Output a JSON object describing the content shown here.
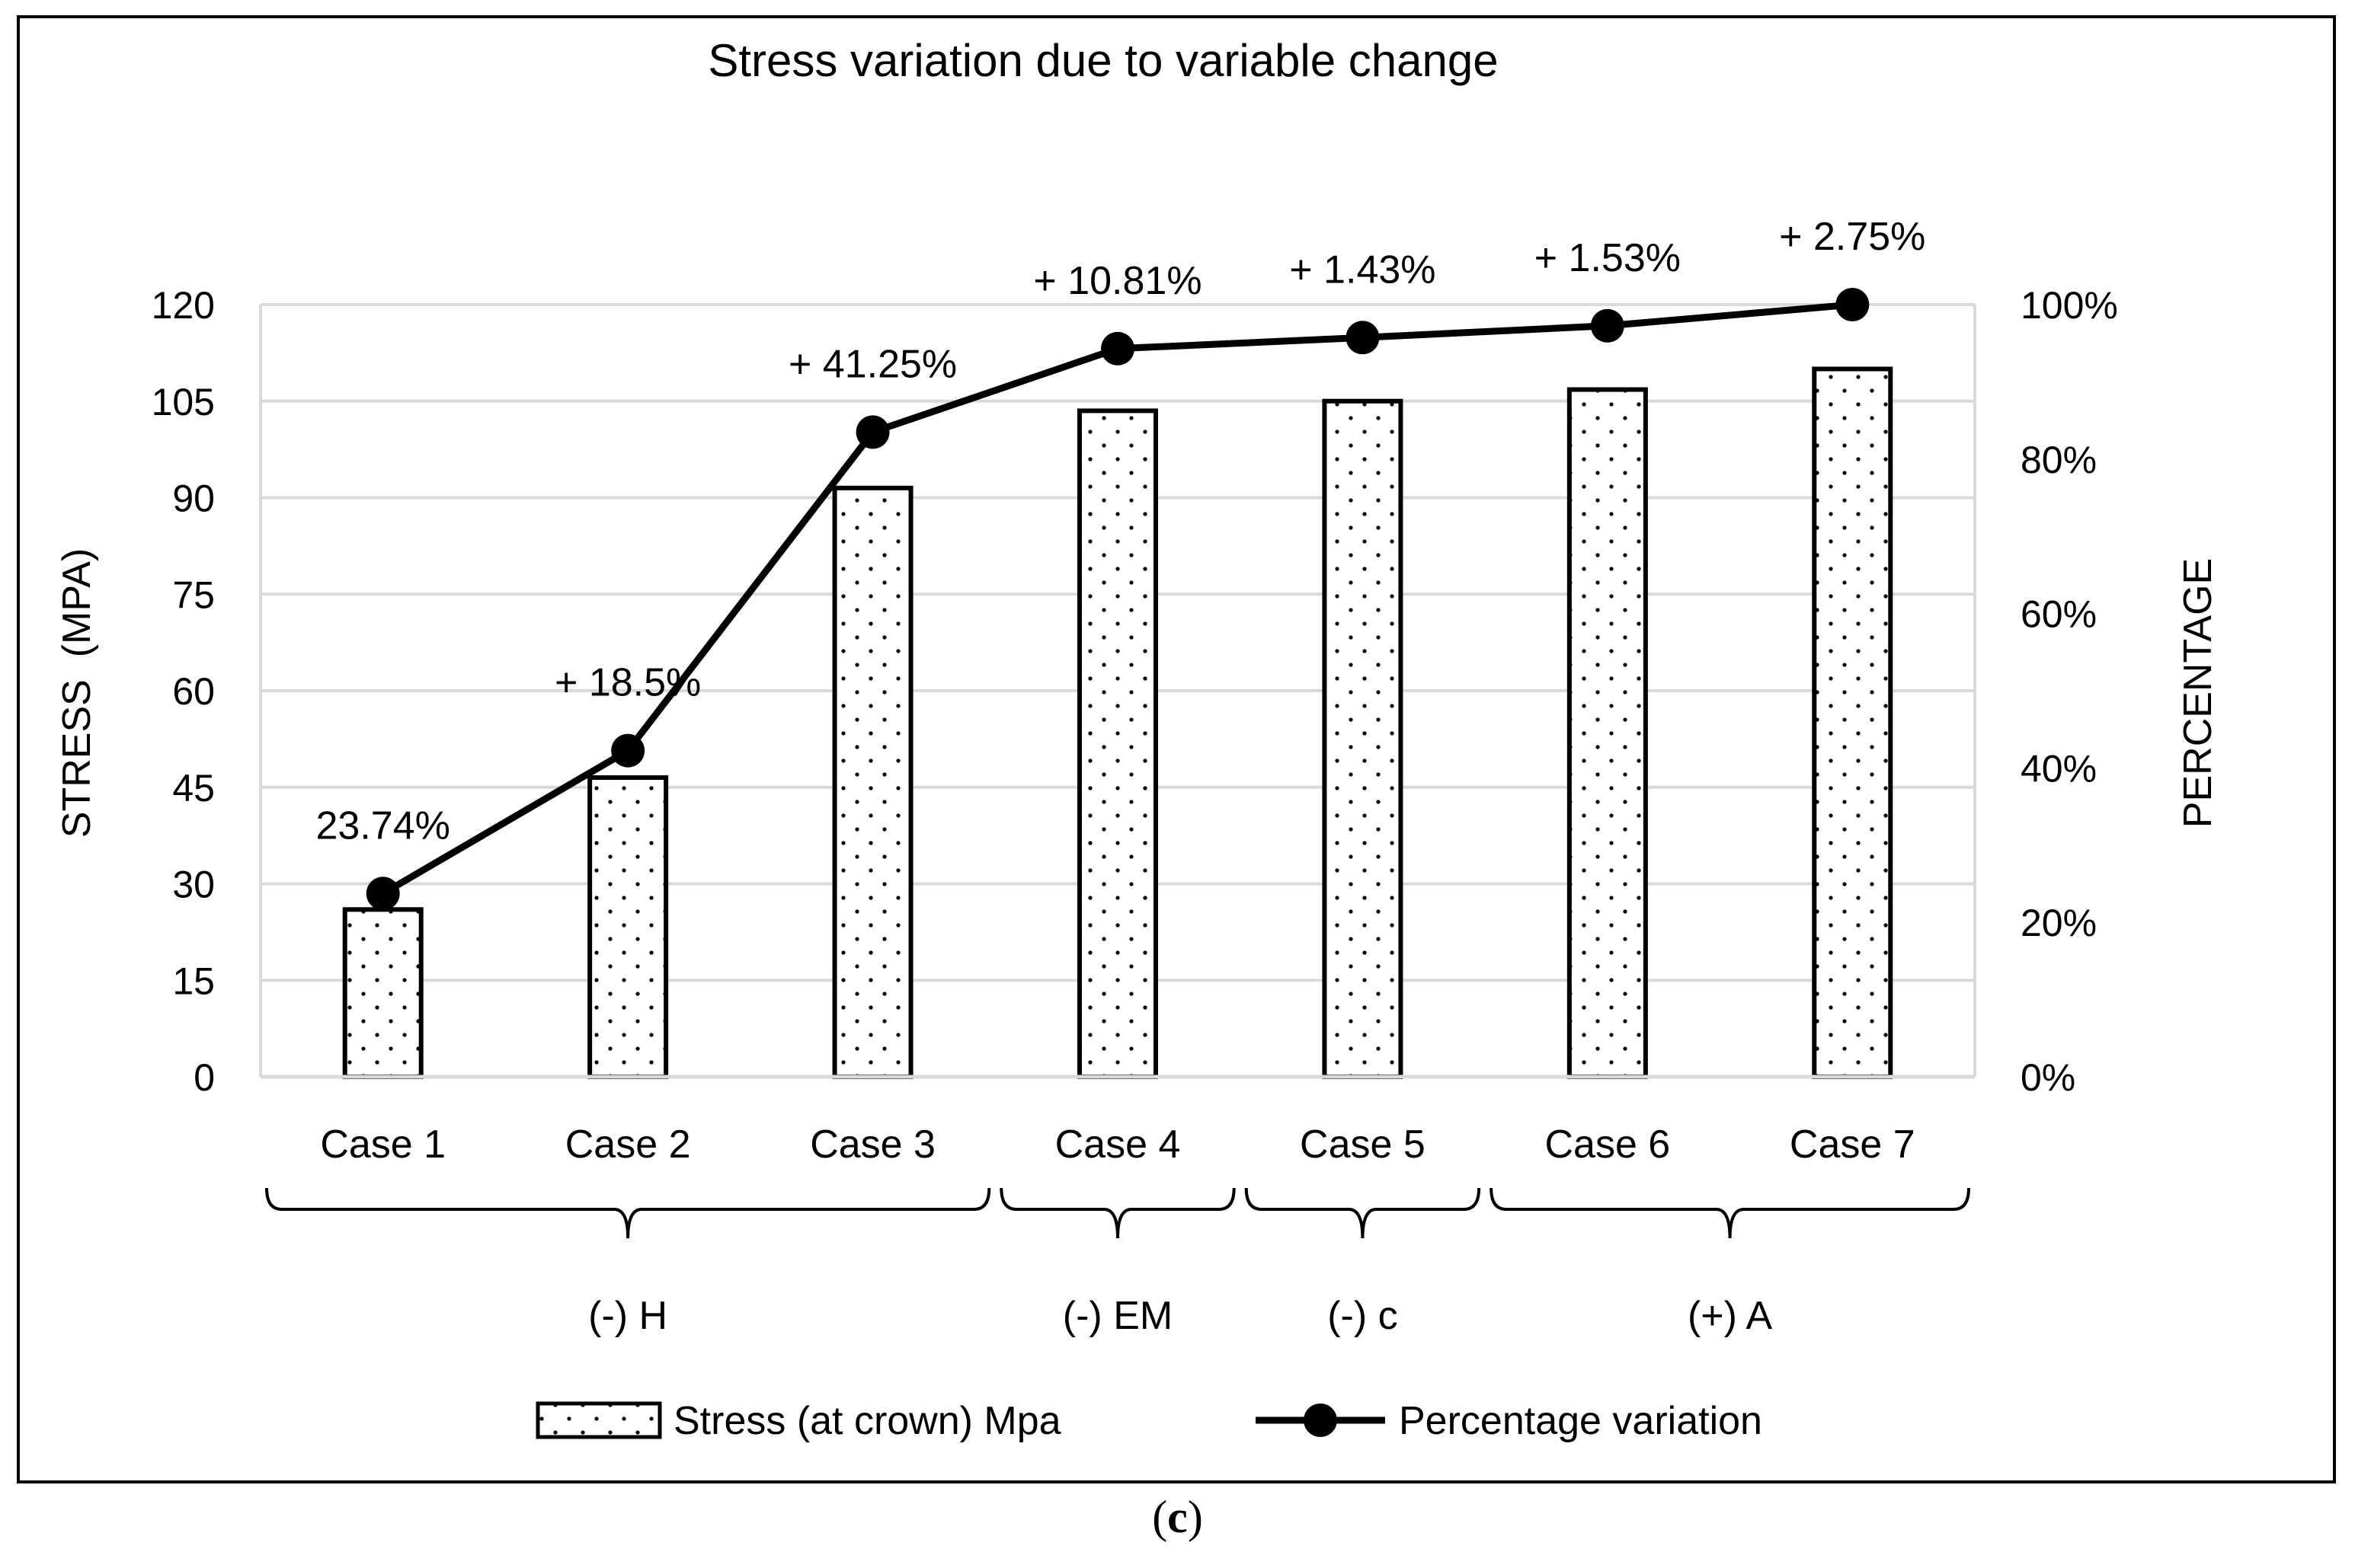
{
  "chart_data": {
    "type": "bar",
    "title": "Stress variation due to variable change",
    "categories": [
      "Case 1",
      "Case 2",
      "Case 3",
      "Case 4",
      "Case 5",
      "Case 6",
      "Case 7"
    ],
    "groups": [
      {
        "label": "(-) H",
        "from": 0,
        "to": 2
      },
      {
        "label": "(-) EM",
        "from": 3,
        "to": 3
      },
      {
        "label": "(-) c",
        "from": 4,
        "to": 4
      },
      {
        "label": "(+) A",
        "from": 5,
        "to": 6
      }
    ],
    "ylabel": "STRESS  (MPA)",
    "y2label": "PERCENTAGE",
    "ylim": [
      0,
      120
    ],
    "yticks": [
      "0",
      "15",
      "30",
      "45",
      "60",
      "75",
      "90",
      "105",
      "120"
    ],
    "y2lim": [
      0,
      100
    ],
    "y2ticks": [
      "0%",
      "20%",
      "40%",
      "60%",
      "80%",
      "100%"
    ],
    "grid": true,
    "legend_position": "bottom",
    "series": [
      {
        "name": "Stress (at crown) Mpa",
        "type": "bar",
        "axis": "left",
        "pattern": "dotted",
        "values": [
          26,
          46.5,
          91.5,
          103.5,
          105,
          106.8,
          110
        ]
      },
      {
        "name": "Percentage variation",
        "type": "line",
        "axis": "right",
        "marker": "circle",
        "values": [
          23.74,
          42.24,
          83.49,
          94.3,
          95.73,
          97.26,
          100
        ],
        "labels": [
          "23.74%",
          "+ 18.5%",
          "+ 41.25%",
          "+ 10.81%",
          "+ 1.43%",
          "+ 1.53%",
          "+ 2.75%"
        ]
      }
    ],
    "colors": {
      "line": "#000000",
      "grid": "#d9d9d9",
      "bar_fill": "#ffffff",
      "bar_stroke": "#000000"
    }
  },
  "caption": {
    "open": "(",
    "letter": "c",
    "close": ")"
  }
}
